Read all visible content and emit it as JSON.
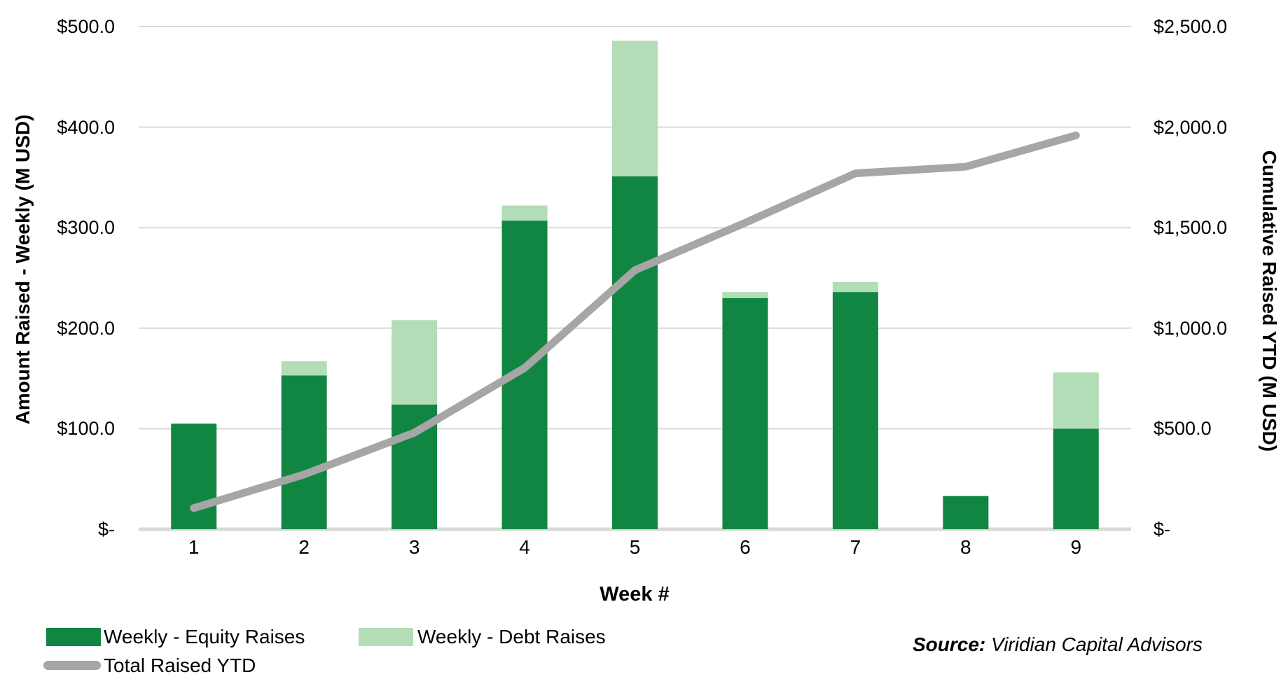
{
  "chart_data": {
    "type": "combo",
    "title": "",
    "x": {
      "label": "Week #",
      "categories": [
        "1",
        "2",
        "3",
        "4",
        "5",
        "6",
        "7",
        "8",
        "9"
      ]
    },
    "left_axis": {
      "label": "Amount Raised - Weekly (M USD)",
      "tick_labels_top_to_bottom": [
        "$500.0",
        "$400.0",
        "$300.0",
        "$200.0",
        "$100.0",
        "$-"
      ],
      "range": [
        0,
        500
      ]
    },
    "right_axis": {
      "label": "Cumulative Raised YTD (M USD)",
      "tick_labels_top_to_bottom": [
        "$2,500.0",
        "$2,000.0",
        "$1,500.0",
        "$1,000.0",
        "$500.0",
        "$-"
      ],
      "range": [
        0,
        2500
      ]
    },
    "series": [
      {
        "name": "Weekly - Equity Raises",
        "type": "bar",
        "stack": "weekly",
        "axis": "left",
        "color": "#118642",
        "values": [
          105,
          153,
          124,
          307,
          351,
          230,
          236,
          33,
          100
        ]
      },
      {
        "name": "Weekly - Debt Raises",
        "type": "bar",
        "stack": "weekly",
        "axis": "left",
        "color": "#b2ddb7",
        "values": [
          0,
          14,
          84,
          15,
          135,
          6,
          10,
          0,
          56
        ]
      },
      {
        "name": "Total Raised YTD",
        "type": "line",
        "axis": "right",
        "color": "#a6a6a6",
        "values": [
          105,
          272,
          480,
          802,
          1288,
          1524,
          1770,
          1803,
          1959
        ]
      }
    ],
    "grid": {
      "color": "#d9d9d9",
      "baseline_color": "#d9d9d9",
      "legend_position": "bottom-left"
    }
  },
  "source_note": {
    "prefix": "Source:",
    "text": " Viridian Capital Advisors"
  }
}
